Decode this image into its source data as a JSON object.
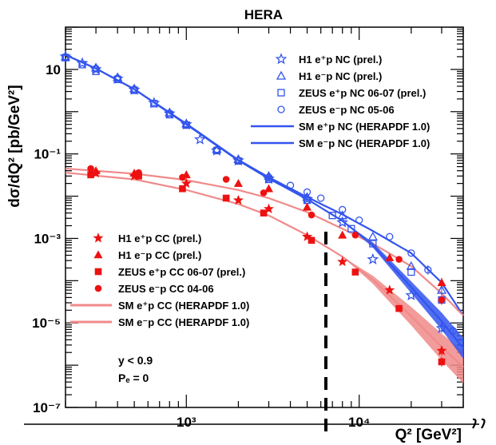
{
  "chart_data": {
    "type": "scatter",
    "title": "HERA",
    "xlabel": "Q² [GeV²]",
    "ylabel": "dσ/dQ² [pb/GeV²]",
    "x_scale": "log",
    "y_scale": "log",
    "xlim": [
      200,
      40000
    ],
    "ylim": [
      1e-07,
      100
    ],
    "x_ticks": [
      {
        "value": 1000,
        "label": "10³"
      },
      {
        "value": 10000,
        "label": "10⁴"
      }
    ],
    "y_ticks": [
      {
        "value": 10,
        "label": "10"
      },
      {
        "value": 0.1,
        "label": "10⁻¹"
      },
      {
        "value": 0.001,
        "label": "10⁻³"
      },
      {
        "value": 1e-05,
        "label": "10⁻⁵"
      },
      {
        "value": 1e-07,
        "label": "10⁻⁷"
      }
    ],
    "legend_nc_position": "top-right",
    "legend_cc_position": "bottom-left",
    "annotations": [
      "y < 0.9",
      "Pₑ = 0"
    ],
    "colors": {
      "nc": "#3355ee",
      "cc": "#ee1111",
      "cc_band": "#f08a8a",
      "marker_line": "#000000"
    },
    "series": [
      {
        "name": "H1 e⁺p NC (prel.)",
        "group": "nc",
        "marker": "star-open",
        "x": [
          200,
          250,
          300,
          400,
          500,
          650,
          800,
          1000,
          1200,
          1500,
          2000,
          3000,
          5000,
          8000,
          12000,
          20000,
          30000
        ],
        "y": [
          20,
          14,
          10,
          6,
          3.3,
          1.6,
          0.9,
          0.5,
          0.22,
          0.12,
          0.07,
          0.026,
          0.0085,
          0.0024,
          0.00032,
          4.5e-05,
          7.5e-06
        ]
      },
      {
        "name": "H1 e⁻p NC (prel.)",
        "group": "nc",
        "marker": "triangle-open",
        "x": [
          200,
          300,
          400,
          500,
          800,
          1000,
          1500,
          2000,
          3000,
          5000,
          8000,
          12000,
          20000,
          30000
        ],
        "y": [
          20,
          11,
          6.5,
          3.5,
          0.95,
          0.52,
          0.13,
          0.075,
          0.03,
          0.0095,
          0.0035,
          0.0011,
          0.00022,
          6e-05
        ]
      },
      {
        "name": "ZEUS e⁺p NC 06-07 (prel.)",
        "group": "nc",
        "marker": "square-open",
        "x": [
          200,
          250,
          300,
          400,
          500,
          650,
          800,
          1000,
          1500,
          2000,
          3000,
          5000,
          7000,
          9000,
          12000,
          20000,
          30000
        ],
        "y": [
          19,
          13,
          9,
          5.8,
          3.2,
          1.55,
          0.85,
          0.48,
          0.12,
          0.068,
          0.025,
          0.008,
          0.0035,
          0.0017,
          0.00075,
          0.00016,
          3.5e-05
        ]
      },
      {
        "name": "ZEUS e⁻p NC 05-06",
        "group": "nc",
        "marker": "circle-open",
        "x": [
          200,
          300,
          400,
          500,
          800,
          1000,
          1500,
          2000,
          3000,
          4000,
          5000,
          6000,
          8000,
          10000,
          15000,
          20000,
          25000,
          35000
        ],
        "y": [
          20,
          10.5,
          6.2,
          3.4,
          0.92,
          0.5,
          0.125,
          0.07,
          0.028,
          0.018,
          0.0125,
          0.009,
          0.0048,
          0.0027,
          0.0011,
          0.00045,
          0.00018,
          6.5e-06
        ]
      },
      {
        "name": "H1 e⁺p CC (prel.)",
        "group": "cc",
        "marker": "star",
        "x": [
          300,
          500,
          1000,
          2000,
          3000,
          5000,
          8000,
          15000,
          30000
        ],
        "y": [
          0.035,
          0.03,
          0.02,
          0.008,
          0.005,
          0.0011,
          0.00028,
          6e-05,
          2.2e-06
        ]
      },
      {
        "name": "H1 e⁻p CC (prel.)",
        "group": "cc",
        "marker": "triangle",
        "x": [
          300,
          500,
          1000,
          2000,
          3000,
          5000,
          8000,
          15000,
          30000
        ],
        "y": [
          0.04,
          0.035,
          0.032,
          0.02,
          0.015,
          0.0055,
          0.0012,
          0.00035,
          9e-05
        ]
      },
      {
        "name": "ZEUS e⁺p CC 06-07 (prel.)",
        "group": "cc",
        "marker": "square",
        "x": [
          280,
          530,
          950,
          1700,
          2800,
          5300,
          9500,
          17000,
          30000
        ],
        "y": [
          0.032,
          0.03,
          0.015,
          0.009,
          0.004,
          0.0009,
          0.00016,
          2.2e-05,
          1.2e-06
        ]
      },
      {
        "name": "ZEUS e⁻p CC 04-06",
        "group": "cc",
        "marker": "circle",
        "x": [
          280,
          530,
          950,
          1700,
          2800,
          5300,
          9500,
          17000,
          30000
        ],
        "y": [
          0.045,
          0.036,
          0.028,
          0.025,
          0.012,
          0.0036,
          0.0012,
          0.00032,
          3.5e-05
        ]
      }
    ],
    "curves": [
      {
        "name": "SM e⁺p NC (HERAPDF 1.0)",
        "group": "nc",
        "x": [
          200,
          300,
          500,
          1000,
          2000,
          3000,
          5000,
          8000,
          12000,
          20000,
          30000,
          40000
        ],
        "y": [
          22,
          10.5,
          3.4,
          0.5,
          0.07,
          0.026,
          0.0085,
          0.0026,
          0.0007,
          7e-05,
          1.1e-05,
          2.5e-06
        ]
      },
      {
        "name": "SM e⁻p NC (HERAPDF 1.0)",
        "group": "nc",
        "x": [
          200,
          300,
          500,
          1000,
          2000,
          3000,
          5000,
          8000,
          12000,
          20000,
          30000,
          40000
        ],
        "y": [
          22,
          10.5,
          3.4,
          0.52,
          0.072,
          0.028,
          0.0095,
          0.0037,
          0.0015,
          0.00045,
          9e-05,
          1.5e-05
        ]
      },
      {
        "name": "SM e⁺p CC (HERAPDF 1.0)",
        "group": "cc",
        "x": [
          200,
          500,
          1000,
          2000,
          3000,
          5000,
          8000,
          12000,
          20000,
          30000,
          40000
        ],
        "y": [
          0.036,
          0.025,
          0.014,
          0.0065,
          0.0035,
          0.0012,
          0.00037,
          0.000105,
          1.45e-05,
          2.7e-06,
          9e-07
        ]
      },
      {
        "name": "SM e⁻p CC (HERAPDF 1.0)",
        "group": "cc",
        "x": [
          200,
          500,
          1000,
          2000,
          3000,
          5000,
          8000,
          12000,
          20000,
          30000,
          40000
        ],
        "y": [
          0.045,
          0.034,
          0.024,
          0.014,
          0.009,
          0.0042,
          0.0017,
          0.00075,
          0.00022,
          5e-05,
          1.5e-05
        ]
      }
    ]
  }
}
